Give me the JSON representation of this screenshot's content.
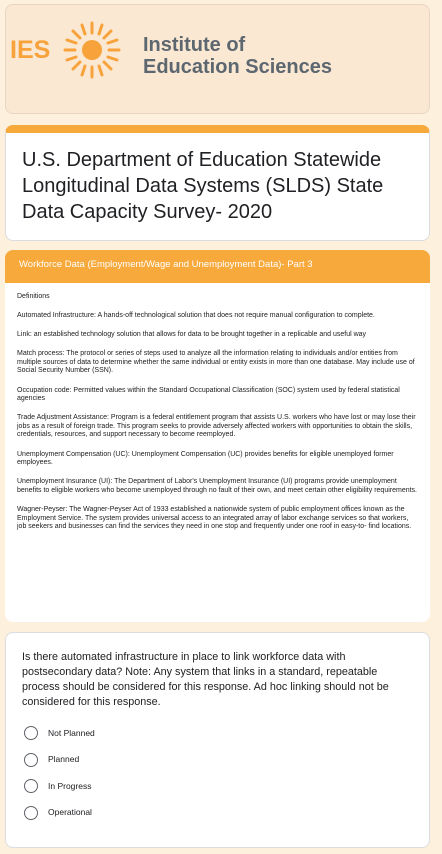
{
  "header": {
    "logo_abbr": "IES",
    "logo_name_line1": "Institute of",
    "logo_name_line2": "Education Sciences"
  },
  "form": {
    "title": "U.S. Department of Education Statewide Longitudinal Data Systems (SLDS) State Data Capacity Survey- 2020",
    "section_title": "Workforce Data (Employment/Wage and Unemployment Data)- Part 3",
    "definitions_heading": "Definitions",
    "definitions": [
      "Automated Infrastructure:  A hands-off technological solution that does not require manual configuration to complete.",
      "Link: an established technology solution that allows for data to be brought together in a replicable and useful way",
      "Match process:  The protocol or series of steps used to analyze all the information relating to individuals and/or entities from multiple sources of data to determine whether the same individual or entity exists in more than one database. May include use of Social Security Number (SSN).",
      "Occupation code:  Permitted values within the Standard Occupational Classification (SOC) system used by federal statistical agencies",
      "Trade Adjustment Assistance:  Program is a federal entitlement program that assists U.S. workers who have lost or may lose their jobs as a result of foreign trade. This program seeks to provide adversely affected workers with opportunities to obtain the skills, credentials, resources, and support necessary to become reemployed.",
      "Unemployment Compensation (UC):  Unemployment Compensation (UC) provides benefits for eligible unemployed former employees.",
      "Unemployment Insurance (UI):  The Department of Labor's Unemployment Insurance (UI) programs provide unemployment benefits to eligible workers who become unemployed through no fault of their own, and meet certain other eligibility requirements.",
      "Wagner-Peyser:  The Wagner-Peyser Act of 1933 established a nationwide system of public employment offices known as the Employment Service. The system provides universal access to an integrated array of labor exchange services so that workers, job seekers and businesses can find the services they need in one stop and frequently under one roof in easy-to- find locations."
    ]
  },
  "question": {
    "text": "Is there automated infrastructure in place to link workforce data with postsecondary data? Note: Any system that links in a standard, repeatable process should be considered for this response. Ad hoc linking should not be considered for this response.",
    "options": [
      "Not Planned",
      "Planned",
      "In Progress",
      "Operational"
    ]
  }
}
